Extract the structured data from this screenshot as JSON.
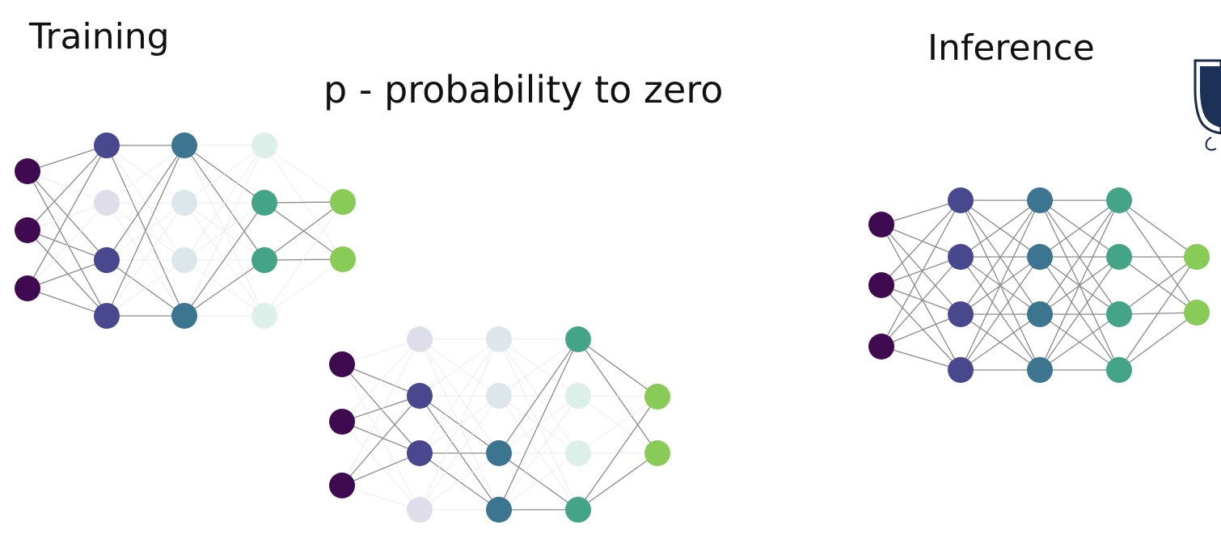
{
  "titles": {
    "training": "Training",
    "subtitle": "p - probability to zero",
    "inference": "Inference"
  },
  "colors": {
    "layers": [
      "#3f0a4f",
      "#49488f",
      "#3b7590",
      "#44a487",
      "#88cb56"
    ],
    "edge": "#8a8a8a",
    "edge_faded": "#ececf2",
    "background": "#ffffff"
  },
  "networks": [
    {
      "name": "training-network-a",
      "layer_sizes": [
        3,
        4,
        4,
        4,
        2
      ],
      "dropped": [
        [],
        [
          1
        ],
        [
          1,
          2
        ],
        [
          0,
          3
        ],
        []
      ]
    },
    {
      "name": "training-network-b",
      "layer_sizes": [
        3,
        4,
        4,
        4,
        2
      ],
      "dropped": [
        [],
        [
          0,
          3
        ],
        [
          0,
          1
        ],
        [
          1,
          2
        ],
        []
      ]
    },
    {
      "name": "inference-network",
      "layer_sizes": [
        3,
        4,
        4,
        4,
        2
      ],
      "dropped": [
        [],
        [],
        [],
        [],
        []
      ]
    }
  ],
  "logo": {
    "icon": "university-shield-icon"
  }
}
